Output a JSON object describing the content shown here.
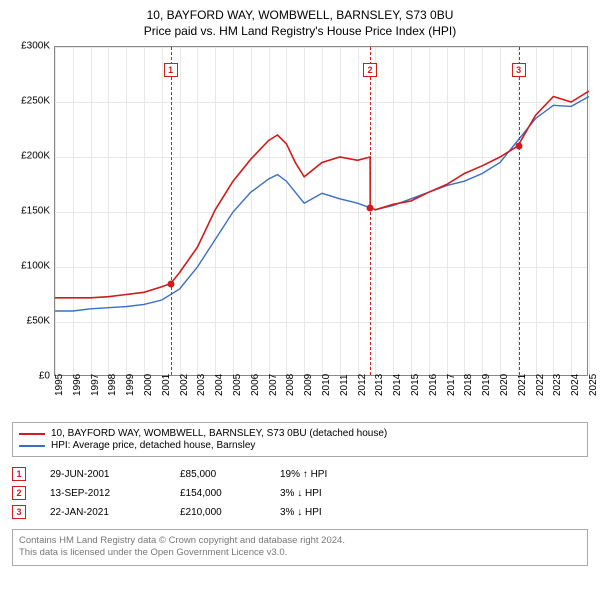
{
  "title": "10, BAYFORD WAY, WOMBWELL, BARNSLEY, S73 0BU",
  "subtitle": "Price paid vs. HM Land Registry's House Price Index (HPI)",
  "chart": {
    "type": "line",
    "background_color": "#ffffff",
    "grid_color": "#e8e8e8",
    "border_color": "#888888",
    "y": {
      "min": 0,
      "max": 300000,
      "step": 50000,
      "ticks": [
        "£0",
        "£50K",
        "£100K",
        "£150K",
        "£200K",
        "£250K",
        "£300K"
      ],
      "label_fontsize": 10
    },
    "x": {
      "min": 1995,
      "max": 2025,
      "ticks": [
        1995,
        1996,
        1997,
        1998,
        1999,
        2000,
        2001,
        2002,
        2003,
        2004,
        2005,
        2006,
        2007,
        2008,
        2009,
        2010,
        2011,
        2012,
        2013,
        2014,
        2015,
        2016,
        2017,
        2018,
        2019,
        2020,
        2021,
        2022,
        2023,
        2024,
        2025
      ],
      "label_fontsize": 10
    },
    "series": [
      {
        "name": "property",
        "label": "10, BAYFORD WAY, WOMBWELL, BARNSLEY, S73 0BU (detached house)",
        "color": "#d01c1c",
        "width": 1.6,
        "points": [
          [
            1995.0,
            72000
          ],
          [
            1996.0,
            72000
          ],
          [
            1997.0,
            72000
          ],
          [
            1998.0,
            73000
          ],
          [
            1999.0,
            75000
          ],
          [
            2000.0,
            77000
          ],
          [
            2001.0,
            82000
          ],
          [
            2001.5,
            85000
          ],
          [
            2002.0,
            95000
          ],
          [
            2003.0,
            118000
          ],
          [
            2004.0,
            152000
          ],
          [
            2005.0,
            178000
          ],
          [
            2006.0,
            198000
          ],
          [
            2007.0,
            215000
          ],
          [
            2007.5,
            220000
          ],
          [
            2008.0,
            212000
          ],
          [
            2008.5,
            195000
          ],
          [
            2009.0,
            182000
          ],
          [
            2010.0,
            195000
          ],
          [
            2011.0,
            200000
          ],
          [
            2012.0,
            197000
          ],
          [
            2012.7,
            200000
          ],
          [
            2012.71,
            154000
          ],
          [
            2013.0,
            152000
          ],
          [
            2014.0,
            157000
          ],
          [
            2015.0,
            160000
          ],
          [
            2016.0,
            168000
          ],
          [
            2017.0,
            175000
          ],
          [
            2018.0,
            185000
          ],
          [
            2019.0,
            192000
          ],
          [
            2020.0,
            200000
          ],
          [
            2021.0,
            210000
          ],
          [
            2022.0,
            238000
          ],
          [
            2023.0,
            255000
          ],
          [
            2024.0,
            250000
          ],
          [
            2025.0,
            260000
          ]
        ]
      },
      {
        "name": "hpi",
        "label": "HPI: Average price, detached house, Barnsley",
        "color": "#3b6fc4",
        "width": 1.4,
        "points": [
          [
            1995.0,
            60000
          ],
          [
            1996.0,
            60000
          ],
          [
            1997.0,
            62000
          ],
          [
            1998.0,
            63000
          ],
          [
            1999.0,
            64000
          ],
          [
            2000.0,
            66000
          ],
          [
            2001.0,
            70000
          ],
          [
            2002.0,
            80000
          ],
          [
            2003.0,
            100000
          ],
          [
            2004.0,
            125000
          ],
          [
            2005.0,
            150000
          ],
          [
            2006.0,
            168000
          ],
          [
            2007.0,
            180000
          ],
          [
            2007.5,
            184000
          ],
          [
            2008.0,
            178000
          ],
          [
            2009.0,
            158000
          ],
          [
            2010.0,
            167000
          ],
          [
            2011.0,
            162000
          ],
          [
            2012.0,
            158000
          ],
          [
            2013.0,
            152000
          ],
          [
            2014.0,
            156000
          ],
          [
            2015.0,
            162000
          ],
          [
            2016.0,
            168000
          ],
          [
            2017.0,
            174000
          ],
          [
            2018.0,
            178000
          ],
          [
            2019.0,
            185000
          ],
          [
            2020.0,
            195000
          ],
          [
            2021.0,
            215000
          ],
          [
            2022.0,
            235000
          ],
          [
            2023.0,
            247000
          ],
          [
            2024.0,
            246000
          ],
          [
            2025.0,
            255000
          ]
        ]
      }
    ],
    "markers": [
      {
        "n": "1",
        "year": 2001.5,
        "value": 85000,
        "dot_color": "#d01c1c"
      },
      {
        "n": "2",
        "year": 2012.7,
        "value": 154000,
        "dot_color": "#d01c1c"
      },
      {
        "n": "3",
        "year": 2021.05,
        "value": 210000,
        "dot_color": "#d01c1c"
      }
    ]
  },
  "legend": {
    "items": [
      {
        "color": "#d01c1c",
        "label": "10, BAYFORD WAY, WOMBWELL, BARNSLEY, S73 0BU (detached house)"
      },
      {
        "color": "#3b6fc4",
        "label": "HPI: Average price, detached house, Barnsley"
      }
    ]
  },
  "events": [
    {
      "n": "1",
      "date": "29-JUN-2001",
      "price": "£85,000",
      "diff": "19% ↑ HPI"
    },
    {
      "n": "2",
      "date": "13-SEP-2012",
      "price": "£154,000",
      "diff": "3% ↓ HPI"
    },
    {
      "n": "3",
      "date": "22-JAN-2021",
      "price": "£210,000",
      "diff": "3% ↓ HPI"
    }
  ],
  "footer": {
    "line1": "Contains HM Land Registry data © Crown copyright and database right 2024.",
    "line2": "This data is licensed under the Open Government Licence v3.0."
  }
}
